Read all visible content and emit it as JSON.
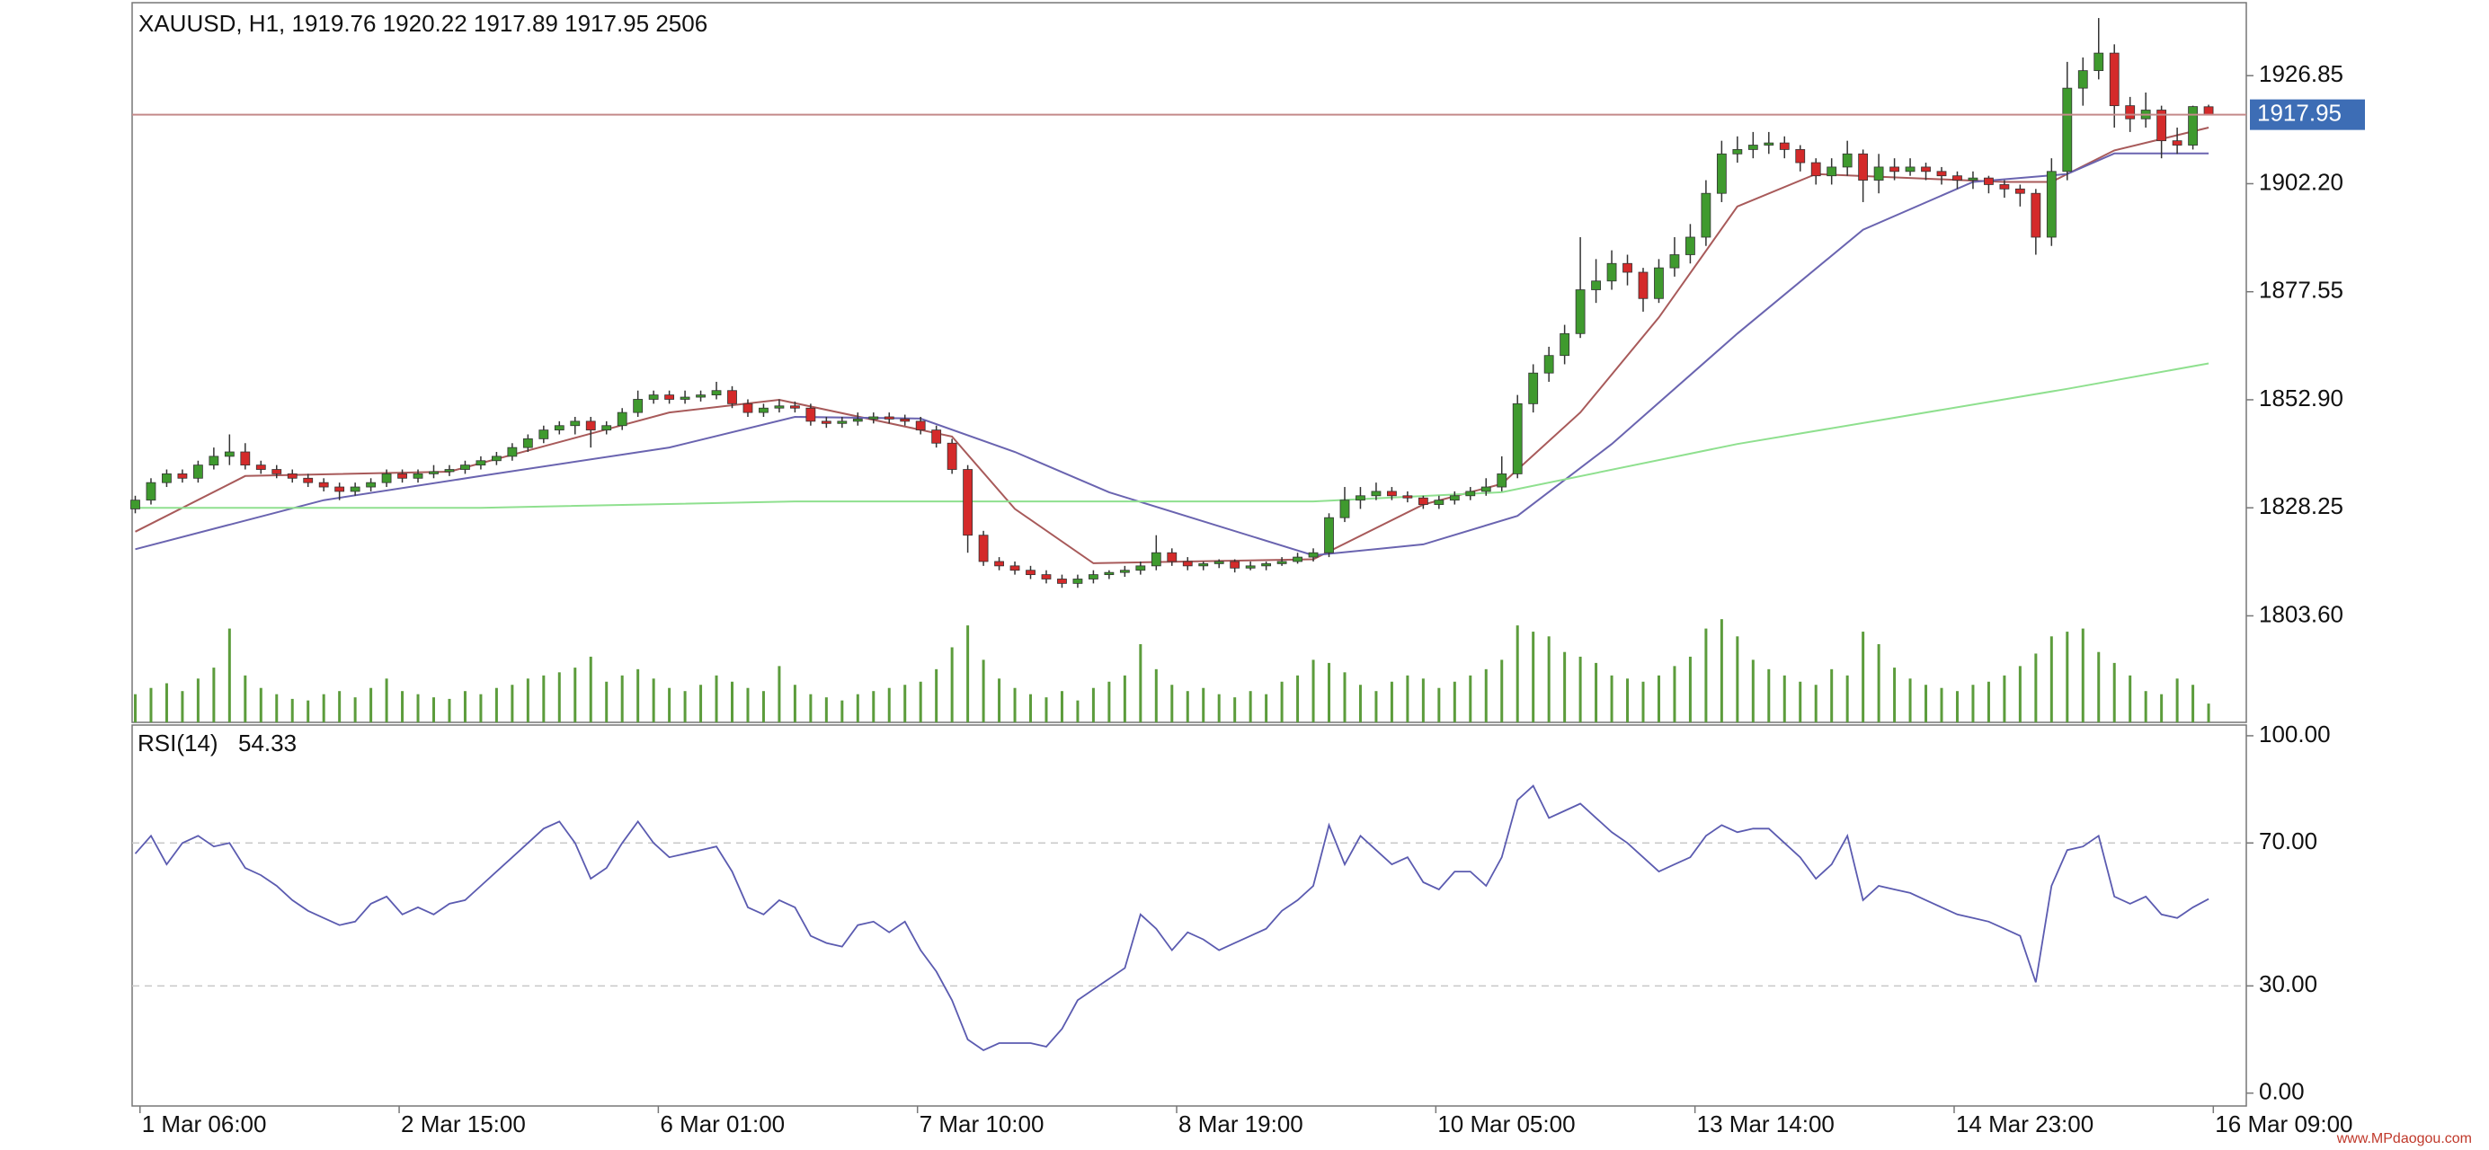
{
  "chart_data": [
    {
      "type": "candlestick",
      "title": "XAUUSD, H1, 1919.76 1920.22 1917.89 1917.95 2506",
      "up_color": "#3f9a2e",
      "down_color": "#d42a2a",
      "wick_color": "#333333",
      "price_line_color": "#c48a8a",
      "price_label_color": "#3d6db5",
      "ylim": [
        1779.3,
        1943.5
      ],
      "yticks": [
        1926.85,
        {
          "value": 1902.2,
          "label": "1902.20"
        },
        1877.55,
        {
          "value": 1852.9,
          "label": "1852.90"
        },
        1828.25,
        {
          "value": 1803.6,
          "label": "1803.60"
        }
      ],
      "xlim": [
        -0.2,
        134.4
      ],
      "xticks": [
        {
          "value": 0.3,
          "label": "1 Mar 06:00"
        },
        {
          "value": 16.8,
          "label": "2 Mar 15:00"
        },
        {
          "value": 33.3,
          "label": "6 Mar 01:00"
        },
        {
          "value": 49.8,
          "label": "7 Mar 10:00"
        },
        {
          "value": 66.3,
          "label": "8 Mar 19:00"
        },
        {
          "value": 82.8,
          "label": "10 Mar 05:00"
        },
        {
          "value": 99.3,
          "label": "13 Mar 14:00"
        },
        {
          "value": 115.8,
          "label": "14 Mar 23:00"
        },
        {
          "value": 132.3,
          "label": "16 Mar 09:00"
        }
      ],
      "ohlc": [
        [
          1828,
          1831,
          1827,
          1830
        ],
        [
          1830,
          1835,
          1829,
          1834
        ],
        [
          1834,
          1837,
          1833,
          1836
        ],
        [
          1836,
          1837,
          1834,
          1835
        ],
        [
          1835,
          1839,
          1834,
          1838
        ],
        [
          1838,
          1842,
          1837,
          1840
        ],
        [
          1840,
          1845,
          1838,
          1841
        ],
        [
          1841,
          1843,
          1837,
          1838
        ],
        [
          1838,
          1839,
          1836,
          1837
        ],
        [
          1837,
          1838,
          1835,
          1836
        ],
        [
          1836,
          1837,
          1834,
          1835
        ],
        [
          1835,
          1836,
          1833,
          1834
        ],
        [
          1834,
          1835,
          1832,
          1833
        ],
        [
          1833,
          1834,
          1830,
          1832
        ],
        [
          1832,
          1834,
          1831,
          1833
        ],
        [
          1833,
          1835,
          1832,
          1834
        ],
        [
          1834,
          1837,
          1833,
          1836
        ],
        [
          1836,
          1837,
          1834,
          1835
        ],
        [
          1835,
          1837,
          1834,
          1836
        ],
        [
          1836,
          1838,
          1835,
          1836.5
        ],
        [
          1836.5,
          1838,
          1835.5,
          1837
        ],
        [
          1837,
          1839,
          1836,
          1838
        ],
        [
          1838,
          1840,
          1837,
          1839
        ],
        [
          1839,
          1841,
          1838,
          1840
        ],
        [
          1840,
          1843,
          1839,
          1842
        ],
        [
          1842,
          1845,
          1841,
          1844
        ],
        [
          1844,
          1847,
          1843,
          1846
        ],
        [
          1846,
          1848,
          1845,
          1847
        ],
        [
          1847,
          1849,
          1845,
          1848
        ],
        [
          1848,
          1849,
          1842,
          1846
        ],
        [
          1846,
          1848,
          1845,
          1847
        ],
        [
          1847,
          1851,
          1846,
          1850
        ],
        [
          1850,
          1855,
          1849,
          1853
        ],
        [
          1853,
          1855,
          1852,
          1854
        ],
        [
          1854,
          1855,
          1852,
          1853
        ],
        [
          1853,
          1855,
          1852,
          1853.5
        ],
        [
          1853.5,
          1855,
          1852.5,
          1854
        ],
        [
          1854,
          1857,
          1853,
          1855
        ],
        [
          1855,
          1856,
          1851,
          1852
        ],
        [
          1852,
          1853,
          1849,
          1850
        ],
        [
          1850,
          1852,
          1849,
          1851
        ],
        [
          1851,
          1853,
          1850,
          1851.5
        ],
        [
          1851.5,
          1852.5,
          1850,
          1851
        ],
        [
          1851,
          1852,
          1847,
          1848
        ],
        [
          1848,
          1849,
          1846.5,
          1847.5
        ],
        [
          1847.5,
          1849,
          1846.5,
          1848
        ],
        [
          1848,
          1850,
          1847,
          1848.5
        ],
        [
          1848.5,
          1850,
          1847.5,
          1849
        ],
        [
          1849,
          1850,
          1847.5,
          1848.5
        ],
        [
          1848.5,
          1849.5,
          1847,
          1848
        ],
        [
          1848,
          1849,
          1845,
          1846
        ],
        [
          1846,
          1847,
          1842,
          1843
        ],
        [
          1843,
          1844,
          1836,
          1837
        ],
        [
          1837,
          1838,
          1818,
          1822
        ],
        [
          1822,
          1823,
          1815,
          1816
        ],
        [
          1816,
          1817,
          1814,
          1815
        ],
        [
          1815,
          1816,
          1813,
          1814
        ],
        [
          1814,
          1815,
          1812,
          1813
        ],
        [
          1813,
          1814,
          1811,
          1812
        ],
        [
          1812,
          1813,
          1810,
          1811
        ],
        [
          1811,
          1813,
          1810,
          1812
        ],
        [
          1812,
          1814,
          1811,
          1813
        ],
        [
          1813,
          1814,
          1812,
          1813.5
        ],
        [
          1813.5,
          1815,
          1812.5,
          1814
        ],
        [
          1814,
          1816,
          1813,
          1815
        ],
        [
          1815,
          1822,
          1814,
          1818
        ],
        [
          1818,
          1819,
          1815,
          1816
        ],
        [
          1816,
          1817,
          1814,
          1815
        ],
        [
          1815,
          1816,
          1814,
          1815.5
        ],
        [
          1815.5,
          1816.5,
          1814.5,
          1816
        ],
        [
          1816,
          1816.5,
          1813.5,
          1814.5
        ],
        [
          1814.5,
          1816,
          1814,
          1815
        ],
        [
          1815,
          1816,
          1814,
          1815.5
        ],
        [
          1815.5,
          1817,
          1815,
          1816
        ],
        [
          1816,
          1818,
          1815.5,
          1817
        ],
        [
          1817,
          1819,
          1816,
          1818
        ],
        [
          1818,
          1827,
          1817,
          1826
        ],
        [
          1826,
          1833,
          1825,
          1830
        ],
        [
          1830,
          1833,
          1828,
          1831
        ],
        [
          1831,
          1834,
          1830,
          1832
        ],
        [
          1832,
          1833,
          1830,
          1831
        ],
        [
          1831,
          1832,
          1829.5,
          1830.5
        ],
        [
          1830.5,
          1831,
          1828,
          1829
        ],
        [
          1829,
          1831,
          1828,
          1830
        ],
        [
          1830,
          1832,
          1829,
          1831
        ],
        [
          1831,
          1833,
          1830,
          1832
        ],
        [
          1832,
          1835,
          1831,
          1833
        ],
        [
          1833,
          1840,
          1832,
          1836
        ],
        [
          1836,
          1854,
          1835,
          1852
        ],
        [
          1852,
          1861,
          1850,
          1859
        ],
        [
          1859,
          1865,
          1857,
          1863
        ],
        [
          1863,
          1870,
          1861,
          1868
        ],
        [
          1868,
          1890,
          1867,
          1878
        ],
        [
          1878,
          1885,
          1875,
          1880
        ],
        [
          1880,
          1887,
          1878,
          1884
        ],
        [
          1884,
          1886,
          1879,
          1882
        ],
        [
          1882,
          1883,
          1873,
          1876
        ],
        [
          1876,
          1885,
          1875,
          1883
        ],
        [
          1883,
          1890,
          1881,
          1886
        ],
        [
          1886,
          1893,
          1884,
          1890
        ],
        [
          1890,
          1903,
          1888,
          1900
        ],
        [
          1900,
          1912,
          1898,
          1909
        ],
        [
          1909,
          1913,
          1907,
          1910
        ],
        [
          1910,
          1914,
          1908,
          1911
        ],
        [
          1911,
          1914,
          1909,
          1911.5
        ],
        [
          1911.5,
          1913,
          1908,
          1910
        ],
        [
          1910,
          1911,
          1905,
          1907
        ],
        [
          1907,
          1908,
          1902,
          1904
        ],
        [
          1904,
          1908,
          1902,
          1906
        ],
        [
          1906,
          1912,
          1904,
          1909
        ],
        [
          1909,
          1910,
          1898,
          1903
        ],
        [
          1903,
          1909,
          1900,
          1906
        ],
        [
          1906,
          1908,
          1903,
          1905
        ],
        [
          1905,
          1908,
          1904,
          1906
        ],
        [
          1906,
          1907,
          1903,
          1905
        ],
        [
          1905,
          1906,
          1902,
          1904
        ],
        [
          1904,
          1905,
          1901,
          1903
        ],
        [
          1903,
          1905,
          1901,
          1903.5
        ],
        [
          1903.5,
          1904,
          1900,
          1902
        ],
        [
          1902,
          1903,
          1899,
          1901
        ],
        [
          1901,
          1902,
          1897,
          1900
        ],
        [
          1900,
          1901,
          1886,
          1890
        ],
        [
          1890,
          1908,
          1888,
          1905
        ],
        [
          1905,
          1930,
          1903,
          1924
        ],
        [
          1924,
          1931,
          1920,
          1928
        ],
        [
          1928,
          1940,
          1926,
          1932
        ],
        [
          1932,
          1934,
          1915,
          1920
        ],
        [
          1920,
          1922,
          1914,
          1917
        ],
        [
          1917,
          1923,
          1915,
          1919
        ],
        [
          1919,
          1920,
          1908,
          1912
        ],
        [
          1912,
          1915,
          1909,
          1911
        ],
        [
          1911,
          1920,
          1910,
          1919.8
        ],
        [
          1919.76,
          1920.22,
          1917.89,
          1917.95
        ]
      ],
      "volume": {
        "color": "#5c9c3c",
        "ylim": [
          0,
          100
        ],
        "values": [
          18,
          22,
          25,
          20,
          28,
          35,
          60,
          30,
          22,
          18,
          15,
          14,
          18,
          20,
          16,
          22,
          28,
          20,
          18,
          16,
          15,
          20,
          18,
          22,
          24,
          28,
          30,
          32,
          35,
          42,
          26,
          30,
          34,
          28,
          22,
          20,
          24,
          30,
          26,
          22,
          20,
          36,
          24,
          18,
          16,
          14,
          18,
          20,
          22,
          24,
          26,
          34,
          48,
          62,
          40,
          28,
          22,
          18,
          16,
          20,
          14,
          22,
          26,
          30,
          50,
          34,
          24,
          20,
          22,
          18,
          16,
          20,
          18,
          26,
          30,
          40,
          38,
          32,
          24,
          20,
          26,
          30,
          28,
          22,
          26,
          30,
          34,
          40,
          62,
          58,
          55,
          45,
          42,
          38,
          30,
          28,
          26,
          30,
          36,
          42,
          60,
          66,
          55,
          40,
          34,
          30,
          26,
          24,
          34,
          30,
          58,
          50,
          35,
          28,
          24,
          22,
          20,
          24,
          26,
          30,
          36,
          44,
          55,
          58,
          60,
          45,
          38,
          30,
          20,
          18,
          28,
          24,
          12
        ]
      },
      "series": [
        {
          "color": "#a85a5a",
          "x": [
            0,
            7,
            20,
            34,
            41,
            52,
            56,
            61,
            75,
            82,
            87,
            92,
            97,
            102,
            107,
            119,
            122,
            126,
            132
          ],
          "values": [
            1822.8,
            1835.5,
            1836.5,
            1850,
            1852.9,
            1844.5,
            1828,
            1815.6,
            1816.5,
            1829,
            1833.7,
            1850,
            1871.7,
            1897,
            1904.4,
            1902.6,
            1902.6,
            1909.8,
            1915
          ]
        },
        {
          "color": "#6a64b0",
          "x": [
            0,
            12,
            22,
            34,
            42,
            50,
            56,
            62,
            75,
            82,
            88,
            94,
            102,
            110,
            117,
            123,
            126,
            132
          ],
          "values": [
            1818.8,
            1830,
            1835.5,
            1842,
            1849,
            1848.6,
            1841,
            1831.8,
            1817.4,
            1819.9,
            1826.4,
            1842.8,
            1868,
            1891.7,
            1902.6,
            1904.4,
            1909.1,
            1909.1
          ]
        },
        {
          "color": "#8fe08f",
          "x": [
            0,
            22,
            42,
            62,
            75,
            87,
            102,
            123,
            132
          ],
          "values": [
            1828.25,
            1828.25,
            1829.7,
            1829.7,
            1829.7,
            1831.8,
            1842.8,
            1855.4,
            1861.2
          ]
        }
      ]
    },
    {
      "type": "line",
      "title": "RSI(14)",
      "ylim": [
        -3.6,
        103
      ],
      "yticks": [
        {
          "value": 100,
          "label": "100.00"
        },
        {
          "value": 70,
          "label": "70.00"
        },
        {
          "value": 30,
          "label": "30.00"
        },
        {
          "value": 0,
          "label": "0.00"
        }
      ],
      "levels": [
        70,
        30
      ],
      "level_color": "#c8c8c8",
      "xlim": [
        -0.2,
        134.4
      ],
      "series": [
        {
          "color": "#5b5bb0",
          "values": [
            67,
            72,
            64,
            70,
            72,
            69,
            70,
            63,
            61,
            58,
            54,
            51,
            49,
            47,
            48,
            53,
            55,
            50,
            52,
            50,
            53,
            54,
            58,
            62,
            66,
            70,
            74,
            76,
            70,
            60,
            63,
            70,
            76,
            70,
            66,
            67,
            68,
            69,
            62,
            52,
            50,
            54,
            52,
            44,
            42,
            41,
            47,
            48,
            45,
            48,
            40,
            34,
            26,
            15,
            12,
            14,
            14,
            14,
            13,
            18,
            26,
            29,
            32,
            35,
            50,
            46,
            40,
            45,
            43,
            40,
            42,
            44,
            46,
            51,
            54,
            58,
            75,
            64,
            72,
            68,
            64,
            66,
            59,
            57,
            62,
            62,
            58,
            66,
            82,
            86,
            77,
            79,
            81,
            77,
            73,
            70,
            66,
            62,
            64,
            66,
            72,
            75,
            73,
            74,
            74,
            70,
            66,
            60,
            64,
            72,
            54,
            58,
            57,
            56,
            54,
            52,
            50,
            49,
            48,
            46,
            44,
            31,
            58,
            68,
            69,
            72,
            55,
            53,
            55,
            50,
            49,
            52,
            54.33
          ]
        }
      ]
    }
  ],
  "watermark": "www.MPdaogou.com"
}
